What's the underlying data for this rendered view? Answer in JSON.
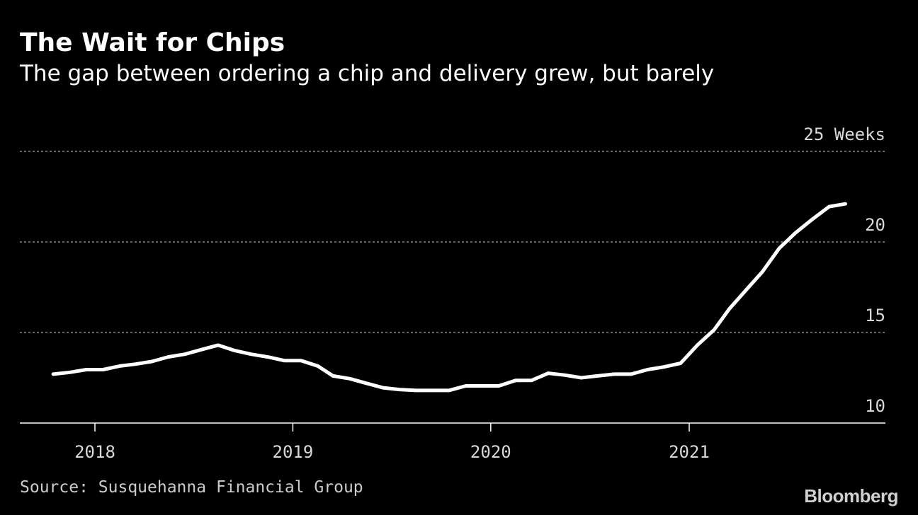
{
  "header": {
    "title": "The Wait for Chips",
    "subtitle": "The gap between ordering a chip and delivery grew, but barely"
  },
  "footer": {
    "source": "Source: Susquehanna Financial Group",
    "brand": "Bloomberg"
  },
  "colors": {
    "background": "#000000",
    "line": "#ffffff",
    "grid": "#888888",
    "text": "#d8d8d8"
  },
  "chart_data": {
    "type": "line",
    "title": "The Wait for Chips",
    "subtitle": "The gap between ordering a chip and delivery grew, but barely",
    "xlabel": "",
    "ylabel": "",
    "ylim": [
      10,
      25
    ],
    "xlim": [
      "2017-10-01",
      "2021-10-31"
    ],
    "y_ticks": [
      {
        "value": 25,
        "label": "25 Weeks"
      },
      {
        "value": 20,
        "label": "20"
      },
      {
        "value": 15,
        "label": "15"
      },
      {
        "value": 10,
        "label": "10"
      }
    ],
    "x_ticks": [
      {
        "value": "2018-01-01",
        "label": "2018"
      },
      {
        "value": "2019-01-01",
        "label": "2019"
      },
      {
        "value": "2020-01-01",
        "label": "2020"
      },
      {
        "value": "2021-01-01",
        "label": "2021"
      }
    ],
    "grid": true,
    "legend": "none",
    "series": [
      {
        "x": [
          "2017-10",
          "2017-11",
          "2017-12",
          "2018-01",
          "2018-02",
          "2018-03",
          "2018-04",
          "2018-05",
          "2018-06",
          "2018-07",
          "2018-08",
          "2018-09",
          "2018-10",
          "2018-11",
          "2018-12",
          "2019-01",
          "2019-02",
          "2019-03",
          "2019-04",
          "2019-05",
          "2019-06",
          "2019-07",
          "2019-08",
          "2019-09",
          "2019-10",
          "2019-11",
          "2019-12",
          "2020-01",
          "2020-02",
          "2020-03",
          "2020-04",
          "2020-05",
          "2020-06",
          "2020-07",
          "2020-08",
          "2020-09",
          "2020-10",
          "2020-11",
          "2020-12",
          "2021-01",
          "2021-02",
          "2021-03",
          "2021-04",
          "2021-05",
          "2021-06",
          "2021-07",
          "2021-08",
          "2021-09",
          "2021-10"
        ],
        "values": [
          12.7,
          12.8,
          12.95,
          12.95,
          13.15,
          13.25,
          13.4,
          13.65,
          13.8,
          14.05,
          14.3,
          14.0,
          13.8,
          13.65,
          13.45,
          13.45,
          13.15,
          12.6,
          12.45,
          12.2,
          11.95,
          11.85,
          11.8,
          11.8,
          11.8,
          12.05,
          12.05,
          12.05,
          12.35,
          12.35,
          12.75,
          12.65,
          12.5,
          12.6,
          12.7,
          12.7,
          12.95,
          13.1,
          13.3,
          14.3,
          15.15,
          16.3,
          17.35,
          18.35,
          19.65,
          20.5,
          21.25,
          21.95,
          22.1
        ]
      }
    ]
  }
}
